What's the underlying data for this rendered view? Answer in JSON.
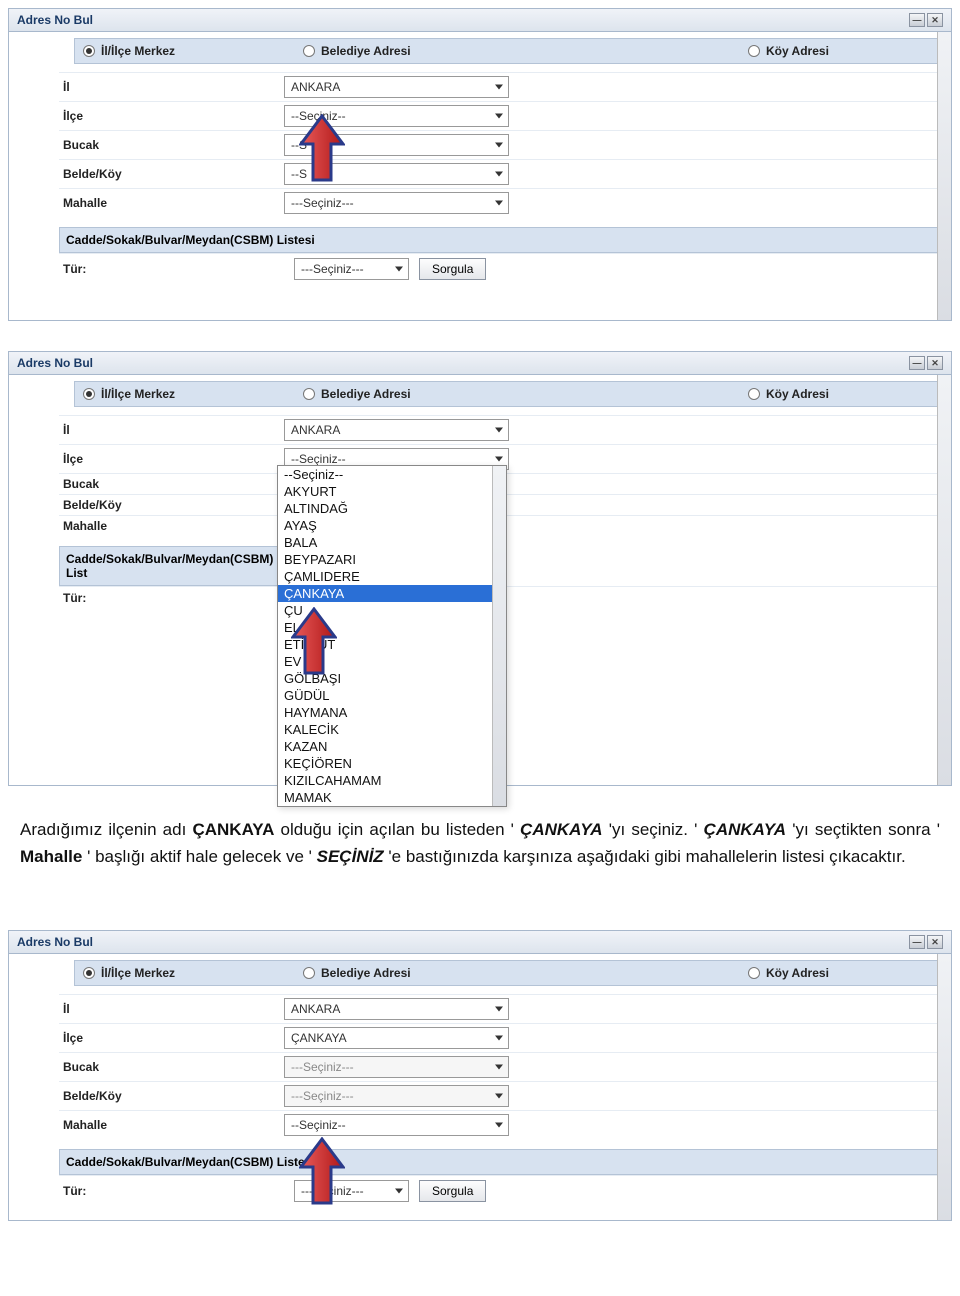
{
  "common": {
    "window_title": "Adres No Bul",
    "radios": {
      "il_ilce_merkez": "İl/İlçe Merkez",
      "belediye_adresi": "Belediye Adresi",
      "koy_adresi": "Köy Adresi"
    },
    "labels": {
      "il": "İl",
      "ilce": "İlçe",
      "bucak": "Bucak",
      "belde_koy": "Belde/Köy",
      "mahalle": "Mahalle",
      "csbm_listesi": "Cadde/Sokak/Bulvar/Meydan(CSBM) Listesi",
      "tur": "Tür:"
    },
    "buttons": {
      "sorgula": "Sorgula"
    },
    "placeholders": {
      "seciniz2": "--Seçiniz--",
      "seciniz3": "---Seçiniz---",
      "seciniz_short": "--S"
    }
  },
  "panel1": {
    "il_value": "ANKARA",
    "ilce_value": "--Seçiniz--",
    "bucak_value": "--S",
    "belde_value": "--S",
    "mahalle_value": "---Seçiniz---",
    "tur_value": "---Seçiniz---"
  },
  "panel2": {
    "il_value": "ANKARA",
    "ilce_value": "--Seçiniz--",
    "csbm_label_trunc": "Cadde/Sokak/Bulvar/Meydan(CSBM) List",
    "tur_label": "Tür:",
    "dropdown_items": [
      "--Seçiniz--",
      "AKYURT",
      "ALTINDAĞ",
      "AYAŞ",
      "BALA",
      "BEYPAZARI",
      "ÇAMLIDERE",
      "ÇANKAYA",
      "ÇU",
      "EL",
      "ETİ        GUT",
      "EV",
      "GÖLBAŞI",
      "GÜDÜL",
      "HAYMANA",
      "KALECİK",
      "KAZAN",
      "KEÇİÖREN",
      "KIZILCAHAMAM",
      "MAMAK"
    ],
    "highlight_index": 7
  },
  "instruction": {
    "t1": "Aradığımız ilçenin adı ",
    "b1": "ÇANKAYA",
    "t2": " olduğu için açılan bu listeden '",
    "bi1": "ÇANKAYA",
    "t3": "'yı seçiniz. '",
    "bi2": "ÇANKAYA",
    "t4": "'yı seçtikten sonra '",
    "b2": "Mahalle",
    "t5": "' başlığı aktif hale gelecek ve '",
    "bi3": "SEÇİNİZ",
    "t6": "'e bastığınızda karşınıza aşağıdaki gibi mahallelerin listesi çıkacaktır."
  },
  "panel3": {
    "il_value": "ANKARA",
    "ilce_value": "ÇANKAYA",
    "bucak_value": "---Seçiniz---",
    "belde_value": "---Seçiniz---",
    "mahalle_value": "--Seçiniz--",
    "tur_value": "---Seçiniz---"
  },
  "colors": {
    "panel_bg": "#e8eef6",
    "header_bg": "#d7e2f0",
    "border": "#a8b8cc",
    "highlight": "#2a6fd6",
    "arrow_fill": "#d93030",
    "arrow_stroke": "#2a3a8a"
  }
}
